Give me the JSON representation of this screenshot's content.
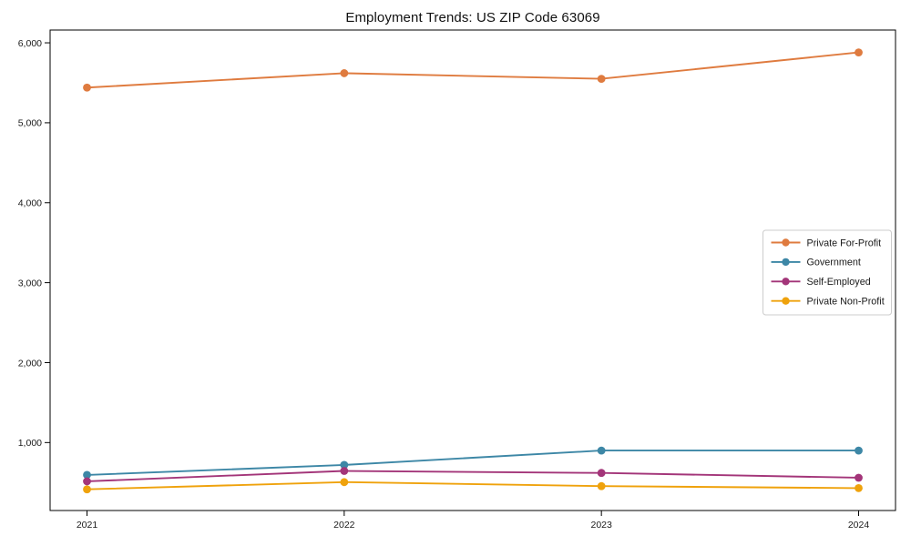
{
  "chart_data": {
    "type": "line",
    "title": "Employment Trends: US ZIP Code 63069",
    "xlabel": "",
    "ylabel": "",
    "categories": [
      "2021",
      "2022",
      "2023",
      "2024"
    ],
    "series": [
      {
        "name": "Private For-Profit",
        "color": "#DF7B3F",
        "values": [
          5440,
          5620,
          5550,
          5880
        ]
      },
      {
        "name": "Government",
        "color": "#3D87A6",
        "values": [
          595,
          720,
          900,
          900
        ]
      },
      {
        "name": "Self-Employed",
        "color": "#A33579",
        "values": [
          515,
          645,
          620,
          560
        ]
      },
      {
        "name": "Private Non-Profit",
        "color": "#EFA20C",
        "values": [
          415,
          505,
          455,
          430
        ]
      }
    ],
    "yticks": [
      1000,
      2000,
      3000,
      4000,
      5000,
      6000
    ],
    "ytick_labels": [
      "1,000",
      "2,000",
      "3,000",
      "4,000",
      "5,000",
      "6,000"
    ],
    "ylim": [
      150,
      6160
    ],
    "grid": false,
    "legend_position": "center right",
    "marker": "circle",
    "axis_color": "#000000",
    "legend_border_color": "#cccccc"
  }
}
